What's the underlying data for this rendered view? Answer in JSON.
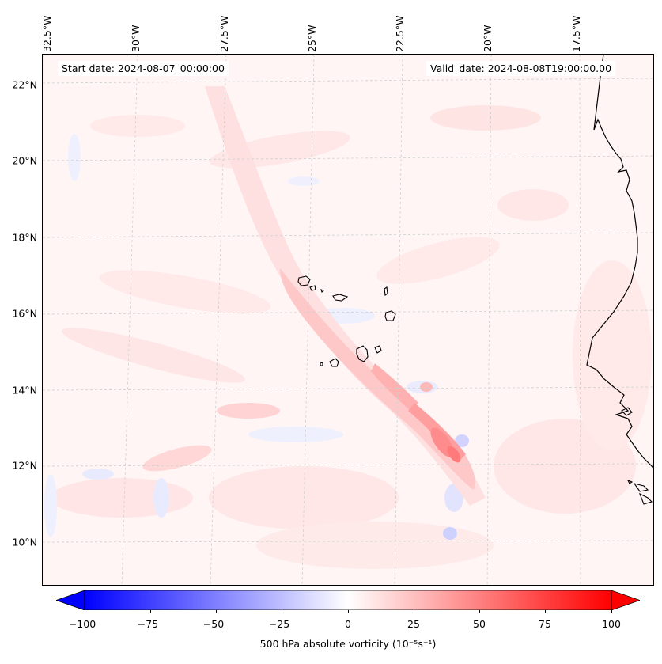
{
  "header": {
    "start_date": "Start date: 2024-08-07_00:00:00",
    "valid_date": "Valid_date: 2024-08-08T19:00:00.00"
  },
  "axes": {
    "lat_labels": [
      "22°N",
      "20°N",
      "18°N",
      "16°N",
      "14°N",
      "12°N",
      "10°N"
    ],
    "lon_labels": [
      "32.5°W",
      "30°W",
      "27.5°W",
      "25°W",
      "22.5°W",
      "20°W",
      "17.5°W"
    ]
  },
  "colorbar": {
    "label": "500 hPa absolute vorticity (10⁻⁵s⁻¹)",
    "ticks": [
      "−100",
      "−75",
      "−50",
      "−25",
      "0",
      "25",
      "50",
      "75",
      "100"
    ],
    "range": [
      -100,
      100
    ],
    "low_color": "#0000ff",
    "mid_color": "#ffffff",
    "high_color": "#ff0000"
  },
  "map": {
    "background_color": "#fff5f5",
    "coastline_color": "#000000",
    "grid": "dashed light gray graticule"
  }
}
